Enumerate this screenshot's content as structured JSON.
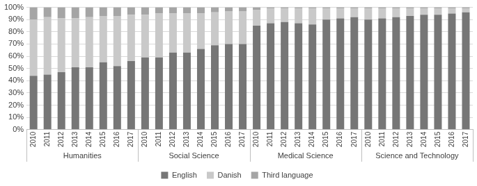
{
  "chart_data": {
    "type": "bar",
    "stacked": true,
    "grid": true,
    "legend": "bottom",
    "groups": [
      {
        "name": "Humanities",
        "categories": [
          "2010",
          "2011",
          "2012",
          "2013",
          "2014",
          "2015",
          "2016",
          "2017"
        ]
      },
      {
        "name": "Social Science",
        "categories": [
          "2010",
          "2011",
          "2012",
          "2013",
          "2014",
          "2015",
          "2016",
          "2017"
        ]
      },
      {
        "name": "Medical Science",
        "categories": [
          "2010",
          "2011",
          "2012",
          "2013",
          "2014",
          "2015",
          "2016",
          "2017"
        ]
      },
      {
        "name": "Science and Technology",
        "categories": [
          "2010",
          "2011",
          "2012",
          "2013",
          "2014",
          "2015",
          "2016",
          "2017"
        ]
      }
    ],
    "series": [
      {
        "name": "English",
        "color": "#767676",
        "values": [
          44,
          45,
          47,
          51,
          51,
          55,
          52,
          56,
          59,
          59,
          63,
          63,
          66,
          69,
          70,
          70,
          85,
          87,
          88,
          87,
          86,
          90,
          91,
          92,
          90,
          91,
          92,
          93,
          94,
          94,
          95,
          96
        ]
      },
      {
        "name": "Danish",
        "color": "#c9c9c9",
        "values": [
          46,
          47,
          44,
          40,
          41,
          38,
          41,
          38,
          35,
          36,
          32,
          32,
          29,
          27,
          27,
          27,
          13,
          12,
          11,
          12,
          13,
          9,
          8,
          7,
          9,
          8,
          7,
          6,
          5,
          5,
          4,
          3
        ]
      },
      {
        "name": "Third language",
        "color": "#a5a5a5",
        "values": [
          10,
          8,
          9,
          9,
          8,
          7,
          7,
          6,
          6,
          5,
          5,
          5,
          5,
          4,
          3,
          3,
          2,
          1,
          1,
          1,
          1,
          1,
          1,
          1,
          1,
          1,
          1,
          1,
          1,
          1,
          1,
          1
        ]
      }
    ],
    "ylim": [
      0,
      100
    ],
    "yticks": [
      {
        "value": 0,
        "label": "0%"
      },
      {
        "value": 10,
        "label": "10%"
      },
      {
        "value": 20,
        "label": "20%"
      },
      {
        "value": 30,
        "label": "30%"
      },
      {
        "value": 40,
        "label": "40%"
      },
      {
        "value": 50,
        "label": "50%"
      },
      {
        "value": 60,
        "label": "60%"
      },
      {
        "value": 70,
        "label": "70%"
      },
      {
        "value": 80,
        "label": "80%"
      },
      {
        "value": 90,
        "label": "90%"
      },
      {
        "value": 100,
        "label": "100%"
      }
    ]
  }
}
